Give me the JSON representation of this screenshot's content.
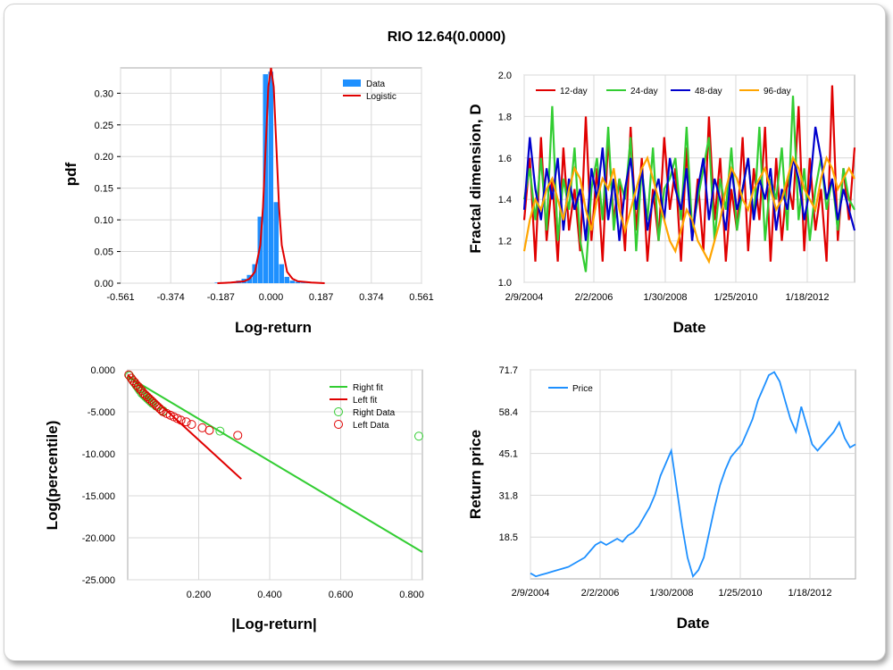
{
  "page_title": "RIO 12.64(0.0000)",
  "chart_data": [
    {
      "type": "bar",
      "id": "pdf",
      "xlabel": "Log-return",
      "ylabel": "pdf",
      "x_ticks": [
        "-0.561",
        "-0.374",
        "-0.187",
        "0.000",
        "0.187",
        "0.374",
        "0.561"
      ],
      "y_ticks": [
        "0.00",
        "0.05",
        "0.10",
        "0.15",
        "0.20",
        "0.25",
        "0.30"
      ],
      "xlim": [
        -0.561,
        0.561
      ],
      "ylim": [
        0,
        0.34
      ],
      "legend": [
        "Data",
        "Logistic"
      ],
      "legend_position": "top-right",
      "colors": {
        "Data": "#1E90FF",
        "Logistic": "#E00000"
      },
      "bins": {
        "x": [
          -0.2,
          -0.18,
          -0.16,
          -0.14,
          -0.12,
          -0.1,
          -0.08,
          -0.06,
          -0.04,
          -0.02,
          0.0,
          0.02,
          0.04,
          0.06,
          0.08,
          0.1,
          0.12,
          0.14
        ],
        "values": [
          0.001,
          0.001,
          0.002,
          0.002,
          0.004,
          0.007,
          0.013,
          0.03,
          0.105,
          0.33,
          0.334,
          0.128,
          0.03,
          0.01,
          0.004,
          0.002,
          0.001,
          0.001
        ]
      },
      "logistic": {
        "x": [
          -0.2,
          -0.15,
          -0.1,
          -0.08,
          -0.06,
          -0.04,
          -0.03,
          -0.02,
          -0.01,
          0.0,
          0.01,
          0.02,
          0.03,
          0.04,
          0.06,
          0.08,
          0.1,
          0.15,
          0.2
        ],
        "values": [
          0.0,
          0.001,
          0.003,
          0.007,
          0.018,
          0.06,
          0.12,
          0.215,
          0.31,
          0.34,
          0.31,
          0.215,
          0.12,
          0.06,
          0.018,
          0.007,
          0.003,
          0.001,
          0.0
        ]
      }
    },
    {
      "type": "line",
      "id": "fractal",
      "xlabel": "Date",
      "ylabel": "Fractal dimension, D",
      "x_ticks": [
        "2/9/2004",
        "2/2/2006",
        "1/30/2008",
        "1/25/2010",
        "1/18/2012"
      ],
      "y_ticks": [
        "1.0",
        "1.2",
        "1.4",
        "1.6",
        "1.8",
        "2.0"
      ],
      "ylim": [
        1.0,
        2.0
      ],
      "legend_position": "top",
      "series": [
        {
          "name": "12-day",
          "color": "#E00000",
          "values": [
            1.3,
            1.6,
            1.1,
            1.7,
            1.2,
            1.5,
            1.1,
            1.65,
            1.25,
            1.45,
            1.15,
            1.8,
            1.2,
            1.55,
            1.1,
            1.7,
            1.3,
            1.5,
            1.15,
            1.75,
            1.25,
            1.6,
            1.1,
            1.45,
            1.2,
            1.7,
            1.35,
            1.55,
            1.1,
            1.65,
            1.2,
            1.5,
            1.15,
            1.8,
            1.3,
            1.6,
            1.1,
            1.45,
            1.25,
            1.7,
            1.15,
            1.55,
            1.3,
            1.75,
            1.1,
            1.6,
            1.2,
            1.5,
            1.35,
            1.85,
            1.15,
            1.6,
            1.25,
            1.45,
            1.1,
            1.95,
            1.2,
            1.55,
            1.3,
            1.65
          ]
        },
        {
          "name": "24-day",
          "color": "#32CD32",
          "values": [
            1.4,
            1.55,
            1.3,
            1.6,
            1.25,
            1.85,
            1.2,
            1.5,
            1.35,
            1.65,
            1.2,
            1.05,
            1.45,
            1.6,
            1.3,
            1.75,
            1.25,
            1.5,
            1.4,
            1.7,
            1.15,
            1.55,
            1.3,
            1.65,
            1.2,
            1.45,
            1.5,
            1.6,
            1.3,
            1.75,
            1.25,
            1.4,
            1.55,
            1.7,
            1.2,
            1.5,
            1.35,
            1.65,
            1.25,
            1.45,
            1.6,
            1.3,
            1.75,
            1.2,
            1.5,
            1.4,
            1.65,
            1.25,
            1.9,
            1.3,
            1.55,
            1.2,
            1.45,
            1.6,
            1.35,
            1.5,
            1.25,
            1.55,
            1.4,
            1.35
          ]
        },
        {
          "name": "48-day",
          "color": "#0000CD",
          "values": [
            1.35,
            1.7,
            1.45,
            1.3,
            1.55,
            1.4,
            1.6,
            1.25,
            1.5,
            1.35,
            1.45,
            1.2,
            1.55,
            1.4,
            1.65,
            1.3,
            1.5,
            1.2,
            1.45,
            1.6,
            1.35,
            1.55,
            1.25,
            1.4,
            1.5,
            1.3,
            1.6,
            1.45,
            1.35,
            1.55,
            1.2,
            1.45,
            1.6,
            1.3,
            1.5,
            1.4,
            1.25,
            1.55,
            1.35,
            1.45,
            1.6,
            1.3,
            1.5,
            1.4,
            1.55,
            1.25,
            1.45,
            1.35,
            1.6,
            1.5,
            1.3,
            1.45,
            1.75,
            1.6,
            1.4,
            1.5,
            1.3,
            1.45,
            1.35,
            1.25
          ]
        },
        {
          "name": "96-day",
          "color": "#FFA500",
          "values": [
            1.15,
            1.3,
            1.4,
            1.35,
            1.45,
            1.5,
            1.4,
            1.3,
            1.45,
            1.55,
            1.5,
            1.35,
            1.25,
            1.4,
            1.5,
            1.45,
            1.55,
            1.35,
            1.25,
            1.35,
            1.45,
            1.55,
            1.6,
            1.5,
            1.4,
            1.3,
            1.2,
            1.15,
            1.25,
            1.35,
            1.3,
            1.2,
            1.15,
            1.1,
            1.2,
            1.3,
            1.45,
            1.55,
            1.5,
            1.4,
            1.35,
            1.45,
            1.5,
            1.55,
            1.45,
            1.35,
            1.4,
            1.5,
            1.6,
            1.55,
            1.45,
            1.4,
            1.35,
            1.5,
            1.6,
            1.55,
            1.45,
            1.5,
            1.55,
            1.5
          ]
        }
      ]
    },
    {
      "type": "scatter",
      "id": "tail",
      "xlabel": "|Log-return|",
      "ylabel": "Log(percentile)",
      "x_ticks": [
        "0.200",
        "0.400",
        "0.600",
        "0.800"
      ],
      "y_ticks": [
        "0.000",
        "-5.000",
        "-10.000",
        "-15.000",
        "-20.000",
        "-25.000"
      ],
      "xlim": [
        0,
        0.83
      ],
      "ylim": [
        -25,
        0
      ],
      "legend": [
        "Right fit",
        "Left fit",
        "Right Data",
        "Left Data"
      ],
      "legend_position": "top-right",
      "right_fit": {
        "color": "#32CD32",
        "x": [
          0.0,
          0.83
        ],
        "y": [
          -0.8,
          -21.7
        ]
      },
      "left_fit": {
        "color": "#E00000",
        "x": [
          0.0,
          0.32
        ],
        "y": [
          -0.6,
          -13.0
        ]
      },
      "right_data": {
        "color": "#32CD32",
        "x": [
          0.005,
          0.01,
          0.015,
          0.02,
          0.025,
          0.03,
          0.035,
          0.04,
          0.045,
          0.05,
          0.055,
          0.06,
          0.065,
          0.07,
          0.08,
          0.09,
          0.1,
          0.26,
          0.82
        ],
        "y": [
          -0.7,
          -1.0,
          -1.3,
          -1.6,
          -1.9,
          -2.2,
          -2.5,
          -2.8,
          -3.0,
          -3.2,
          -3.4,
          -3.6,
          -3.8,
          -4.0,
          -4.3,
          -4.6,
          -4.9,
          -7.3,
          -7.9
        ]
      },
      "left_data": {
        "color": "#E00000",
        "x": [
          0.003,
          0.01,
          0.015,
          0.02,
          0.025,
          0.03,
          0.035,
          0.04,
          0.045,
          0.05,
          0.055,
          0.06,
          0.065,
          0.07,
          0.075,
          0.08,
          0.085,
          0.09,
          0.095,
          0.1,
          0.11,
          0.12,
          0.13,
          0.14,
          0.15,
          0.165,
          0.18,
          0.21,
          0.23,
          0.31
        ],
        "y": [
          -0.6,
          -1.0,
          -1.3,
          -1.5,
          -1.8,
          -2.0,
          -2.3,
          -2.5,
          -2.8,
          -3.0,
          -3.2,
          -3.4,
          -3.6,
          -3.8,
          -4.0,
          -4.2,
          -4.4,
          -4.6,
          -4.8,
          -5.0,
          -5.2,
          -5.4,
          -5.6,
          -5.8,
          -6.0,
          -6.2,
          -6.5,
          -6.9,
          -7.2,
          -7.8
        ]
      }
    },
    {
      "type": "line",
      "id": "price",
      "xlabel": "Date",
      "ylabel": "Return price",
      "x_ticks": [
        "2/9/2004",
        "2/2/2006",
        "1/30/2008",
        "1/25/2010",
        "1/18/2012"
      ],
      "y_ticks": [
        "71.7",
        "58.4",
        "45.1",
        "31.8",
        "18.5"
      ],
      "ylim": [
        5.2,
        71.7
      ],
      "legend": [
        "Price"
      ],
      "legend_position": "top-left",
      "series": [
        {
          "name": "Price",
          "color": "#1E90FF",
          "values": [
            7,
            6,
            6.5,
            7,
            7.5,
            8,
            8.5,
            9,
            10,
            11,
            12,
            14,
            16,
            17,
            16,
            17,
            18,
            17,
            19,
            20,
            22,
            25,
            28,
            32,
            38,
            42,
            46,
            34,
            22,
            12,
            6,
            8,
            12,
            20,
            28,
            35,
            40,
            44,
            46,
            48,
            52,
            56,
            62,
            66,
            70,
            71,
            68,
            62,
            56,
            52,
            60,
            54,
            48,
            46,
            48,
            50,
            52,
            55,
            50,
            47,
            48
          ]
        }
      ]
    }
  ]
}
